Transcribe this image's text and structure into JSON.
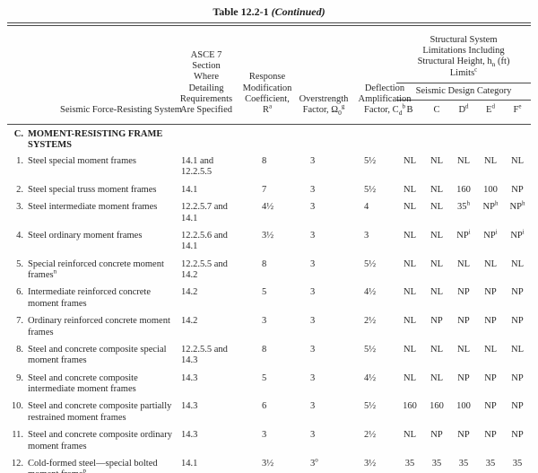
{
  "table_title": {
    "main": "Table 12.2-1",
    "continued": "(Continued)"
  },
  "header": {
    "system": "Seismic Force-Resisting System",
    "section": "ASCE 7\nSection\nWhere\nDetailing\nRequirements\nAre Specified",
    "r": "Response\nModification\nCoefficient,\nR^a",
    "omega": "Overstrength\nFactor, Ω_0^g",
    "cd": "Deflection\nAmplification\nFactor, C_d^b",
    "limits": "Structural System\nLimitations Including\nStructural Height, h_n (ft)\nLimits^c",
    "sdc": "Seismic Design Category",
    "cats": [
      "B",
      "C",
      "D^d",
      "E^d",
      "F^e"
    ]
  },
  "section_header": {
    "num": "C.",
    "name": "MOMENT-RESISTING FRAME SYSTEMS"
  },
  "rows": [
    {
      "num": "1.",
      "name": "Steel special moment frames",
      "section": "14.1 and 12.2.5.5",
      "r": "8",
      "omega": "3",
      "cd": "5½",
      "b": "NL",
      "c": "NL",
      "d": "NL",
      "e": "NL",
      "f": "NL"
    },
    {
      "num": "2.",
      "name": "Steel special truss moment frames",
      "section": "14.1",
      "r": "7",
      "omega": "3",
      "cd": "5½",
      "b": "NL",
      "c": "NL",
      "d": "160",
      "e": "100",
      "f": "NP"
    },
    {
      "num": "3.",
      "name": "Steel intermediate moment frames",
      "section": "12.2.5.7 and 14.1",
      "r": "4½",
      "omega": "3",
      "cd": "4",
      "b": "NL",
      "c": "NL",
      "d": "35^h",
      "e": "NP^h",
      "f": "NP^h"
    },
    {
      "num": "4.",
      "name": "Steel ordinary moment frames",
      "section": "12.2.5.6 and 14.1",
      "r": "3½",
      "omega": "3",
      "cd": "3",
      "b": "NL",
      "c": "NL",
      "d": "NP^i",
      "e": "NP^i",
      "f": "NP^i"
    },
    {
      "num": "5.",
      "name": "Special reinforced concrete moment frames^n",
      "section": "12.2.5.5 and 14.2",
      "r": "8",
      "omega": "3",
      "cd": "5½",
      "b": "NL",
      "c": "NL",
      "d": "NL",
      "e": "NL",
      "f": "NL"
    },
    {
      "num": "6.",
      "name": "Intermediate reinforced concrete moment frames",
      "section": "14.2",
      "r": "5",
      "omega": "3",
      "cd": "4½",
      "b": "NL",
      "c": "NL",
      "d": "NP",
      "e": "NP",
      "f": "NP"
    },
    {
      "num": "7.",
      "name": "Ordinary reinforced concrete moment frames",
      "section": "14.2",
      "r": "3",
      "omega": "3",
      "cd": "2½",
      "b": "NL",
      "c": "NP",
      "d": "NP",
      "e": "NP",
      "f": "NP"
    },
    {
      "num": "8.",
      "name": "Steel and concrete composite special moment frames",
      "section": "12.2.5.5 and 14.3",
      "r": "8",
      "omega": "3",
      "cd": "5½",
      "b": "NL",
      "c": "NL",
      "d": "NL",
      "e": "NL",
      "f": "NL"
    },
    {
      "num": "9.",
      "name": "Steel and concrete composite intermediate moment frames",
      "section": "14.3",
      "r": "5",
      "omega": "3",
      "cd": "4½",
      "b": "NL",
      "c": "NL",
      "d": "NP",
      "e": "NP",
      "f": "NP"
    },
    {
      "num": "10.",
      "name": "Steel and concrete composite partially restrained moment frames",
      "section": "14.3",
      "r": "6",
      "omega": "3",
      "cd": "5½",
      "b": "160",
      "c": "160",
      "d": "100",
      "e": "NP",
      "f": "NP"
    },
    {
      "num": "11.",
      "name": "Steel and concrete composite ordinary moment frames",
      "section": "14.3",
      "r": "3",
      "omega": "3",
      "cd": "2½",
      "b": "NL",
      "c": "NP",
      "d": "NP",
      "e": "NP",
      "f": "NP"
    },
    {
      "num": "12.",
      "name": "Cold-formed steel—special bolted moment frame^p",
      "section": "14.1",
      "r": "3½",
      "omega": "3^o",
      "cd": "3½",
      "b": "35",
      "c": "35",
      "d": "35",
      "e": "35",
      "f": "35"
    }
  ]
}
